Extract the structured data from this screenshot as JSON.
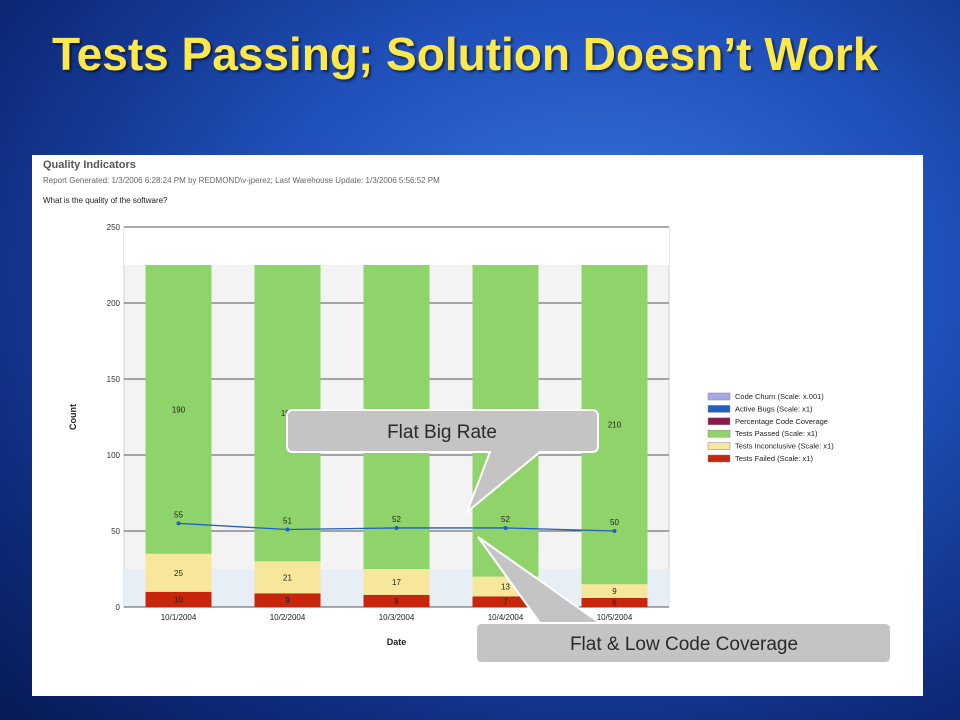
{
  "slide": {
    "title": "Tests Passing; Solution Doesn’t Work"
  },
  "report": {
    "title": "Quality Indicators",
    "meta": "Report Generated: 1/3/2006 6:28:24 PM by REDMOND\\v-jperez; Last Warehouse Update: 1/3/2006 5:56:52 PM",
    "question": "What is the quality of the software?"
  },
  "callouts": {
    "flat_big_rate": "Flat Big Rate",
    "flat_low_coverage": "Flat & Low Code Coverage"
  },
  "colors": {
    "tests_passed": "#8fd46a",
    "tests_inconclusive": "#f6e79a",
    "tests_failed": "#c8260c",
    "active_bugs": "#1f5fbf",
    "code_churn": "#a7a7e6",
    "percentage_code_coverage": "#8a1a4a",
    "callout_fill": "#c4c4c4"
  },
  "chart_data": {
    "type": "bar",
    "stacked": true,
    "title": "",
    "xlabel": "Date",
    "ylabel": "Count",
    "ylim": [
      0,
      250
    ],
    "yticks": [
      0,
      50,
      100,
      150,
      200,
      250
    ],
    "categories": [
      "10/1/2004",
      "10/2/2004",
      "10/3/2004",
      "10/4/2004",
      "10/5/2004"
    ],
    "series": [
      {
        "name": "Tests Failed (Scale: x1)",
        "values": [
          10,
          9,
          8,
          7,
          6
        ],
        "color": "#c8260c"
      },
      {
        "name": "Tests Inconclusive (Scale: x1)",
        "values": [
          25,
          21,
          17,
          13,
          9
        ],
        "color": "#f6e79a"
      },
      {
        "name": "Tests Passed (Scale: x1)",
        "values": [
          190,
          195,
          200,
          205,
          210
        ],
        "color": "#8fd46a"
      }
    ],
    "line_series": [
      {
        "name": "Active Bugs (Scale: x1)",
        "values": [
          55,
          51,
          52,
          52,
          50
        ],
        "color": "#1f5fbf"
      }
    ],
    "legend": {
      "placement": "right",
      "entries": [
        {
          "label": "Code Churn (Scale: x.001)",
          "color": "#a7a7e6"
        },
        {
          "label": "Active Bugs (Scale: x1)",
          "color": "#1f5fbf"
        },
        {
          "label": "Percentage Code Coverage",
          "color": "#8a1a4a"
        },
        {
          "label": "Tests Passed (Scale: x1)",
          "color": "#8fd46a"
        },
        {
          "label": "Tests Inconclusive (Scale: x1)",
          "color": "#f6e79a"
        },
        {
          "label": "Tests Failed (Scale: x1)",
          "color": "#c8260c"
        }
      ]
    },
    "grid": true
  }
}
